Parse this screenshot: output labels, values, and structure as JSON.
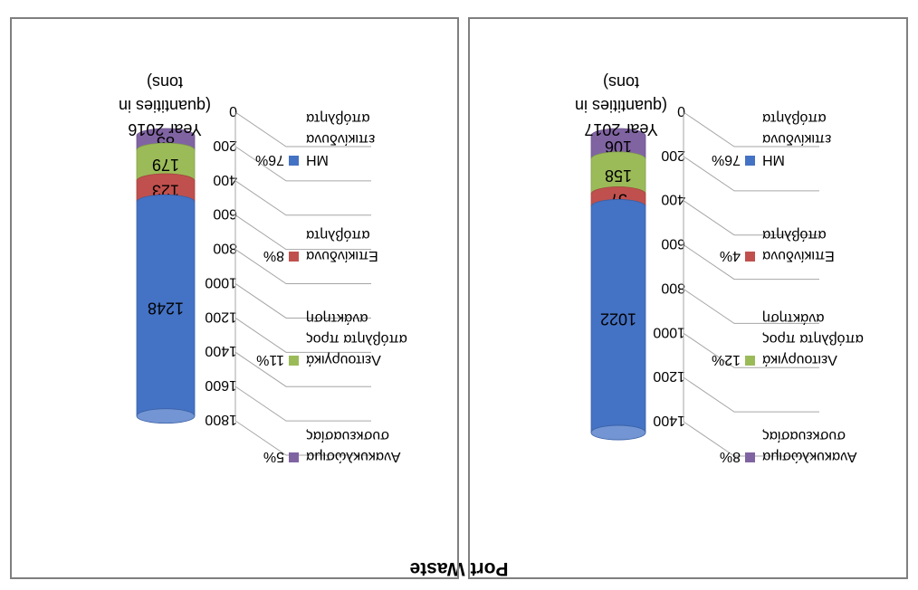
{
  "figure_title": "Port Waste",
  "colors": {
    "mw": "#4472C4",
    "hazardous": "#C0504D",
    "operational": "#9BBB59",
    "recyclable": "#8064A2"
  },
  "chart_data": [
    {
      "type": "bar",
      "stacked": true,
      "three_d": "cylinder",
      "title": "Year 2016 (quantities in tons)",
      "categories": [
        "Year 2016 (quantities in tons)"
      ],
      "ylim": [
        0,
        1800
      ],
      "yticks": [
        0,
        200,
        400,
        600,
        800,
        1000,
        1200,
        1400,
        1600,
        1800
      ],
      "grid": true,
      "legend_position": "right",
      "series": [
        {
          "name": "Ανακυκλώσιμα συσκευασίας",
          "legend": "5% Ανακυκλώσιμα συσκευασίας",
          "percent": "5%",
          "value": 85,
          "color": "#8064A2"
        },
        {
          "name": "Λειτουργικά απόβλητα προς ανάκτηση",
          "legend": "11% Λειτουργικά απόβλητα προς ανάκτηση",
          "percent": "11%",
          "value": 179,
          "color": "#9BBB59"
        },
        {
          "name": "Επικίνδυνα απόβλητα",
          "legend": "8% Επικίνδυνα απόβλητα",
          "percent": "8%",
          "value": 123,
          "color": "#C0504D"
        },
        {
          "name": "ΜΗ επικίνδυνα απόβλητα",
          "legend": "76% ΜΗ επικίνδυνα απόβλητα",
          "percent": "76%",
          "value": 1248,
          "color": "#4472C4"
        }
      ]
    },
    {
      "type": "bar",
      "stacked": true,
      "three_d": "cylinder",
      "title": "Year 2017 (quantities in tons)",
      "categories": [
        "Year 2017 (quantities in tons)"
      ],
      "ylim": [
        0,
        1400
      ],
      "yticks": [
        0,
        200,
        400,
        600,
        800,
        1000,
        1200,
        1400
      ],
      "grid": true,
      "legend_position": "right",
      "series": [
        {
          "name": "Ανακυκλώσιμα συσκευασίας",
          "legend": "8% Ανακυκλώσιμα συσκευασίας",
          "percent": "8%",
          "value": 106,
          "color": "#8064A2"
        },
        {
          "name": "Λειτουργικά απόβλητα προς ανάκτηση",
          "legend": "12% Λειτουργικά απόβλητα προς ανάκτηση",
          "percent": "12%",
          "value": 158,
          "color": "#9BBB59"
        },
        {
          "name": "Επικίνδυνα απόβλητα",
          "legend": "4% Επικίνδυνα απόβλητα",
          "percent": "4%",
          "value": 57,
          "color": "#C0504D"
        },
        {
          "name": "ΜΗ επικίνδυνα απόβλητα",
          "legend": "76% ΜΗ επικίνδυνα απόβλητα",
          "percent": "76%",
          "value": 1022,
          "color": "#4472C4"
        }
      ]
    }
  ],
  "legend_lines": [
    {
      "percent_2016": "5%",
      "percent_2017": "8%",
      "lines": [
        "Ανακυκλώσιμα",
        "συσκευασίας"
      ]
    },
    {
      "percent_2016": "11%",
      "percent_2017": "12%",
      "lines": [
        "Λειτουργικά",
        "απόβλητα προς",
        "ανάκτηση"
      ]
    },
    {
      "percent_2016": "8%",
      "percent_2017": "4%",
      "lines": [
        "Επικίνδυνα",
        "απόβλητα"
      ]
    },
    {
      "percent_2016": "76%",
      "percent_2017": "76%",
      "lines": [
        "ΜΗ",
        "επικίνδυνα",
        "απόβλητα"
      ]
    }
  ],
  "title_lines": {
    "y2016": [
      "Year 2016",
      "(quantities in",
      "tons)"
    ],
    "y2017": [
      "Year 2017",
      "(quantities in",
      "tons)"
    ]
  }
}
